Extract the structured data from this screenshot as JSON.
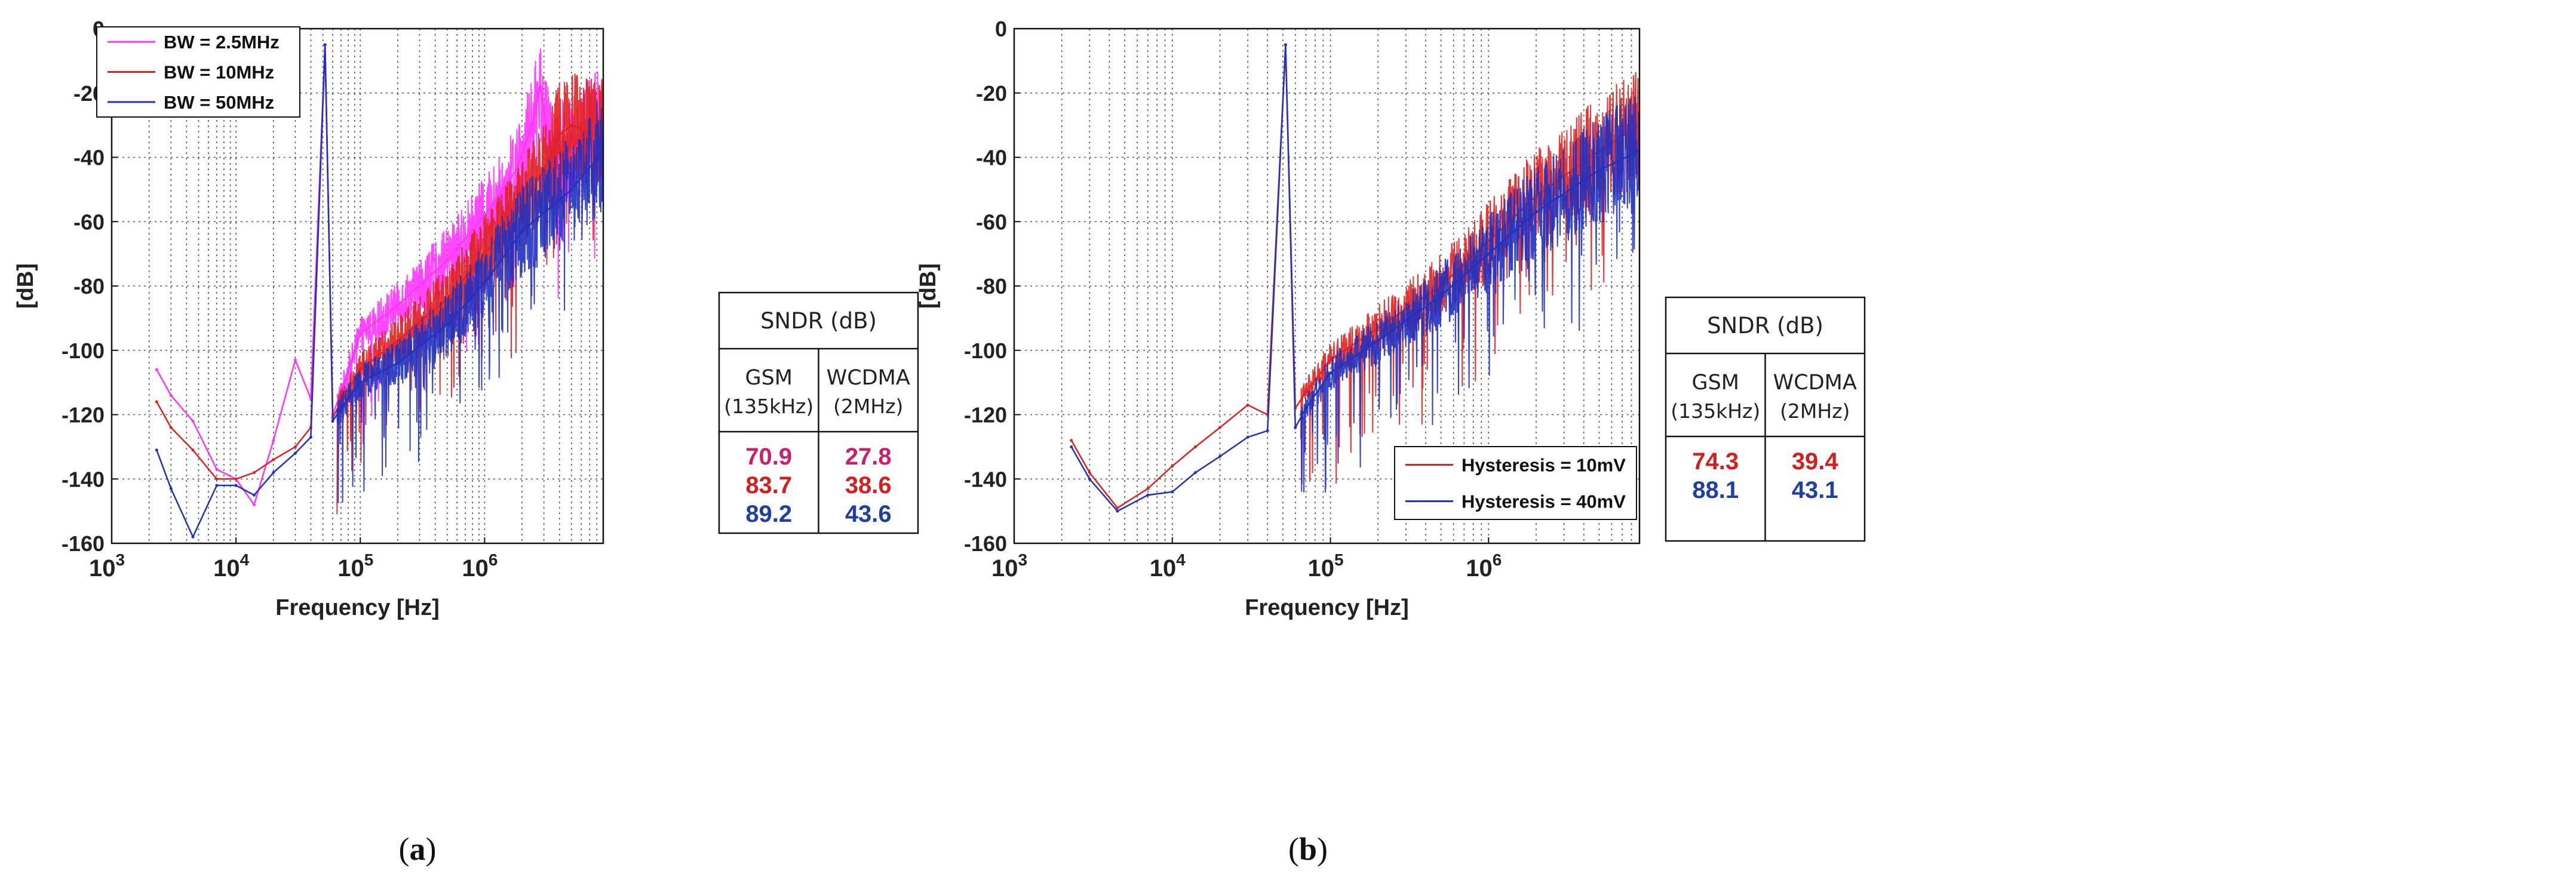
{
  "chart_data": [
    {
      "type": "line",
      "panel_label": "a",
      "xlabel": "Frequency [Hz]",
      "ylabel": "[dB]",
      "x_scale": "log",
      "xlim": [
        1000,
        9000000
      ],
      "ylim": [
        -160,
        0
      ],
      "x_ticks": [
        {
          "base": "10",
          "exp": "3"
        },
        {
          "base": "10",
          "exp": "4"
        },
        {
          "base": "10",
          "exp": "5"
        },
        {
          "base": "10",
          "exp": "6"
        }
      ],
      "y_ticks": [
        "0",
        "-20",
        "-40",
        "-60",
        "-80",
        "-100",
        "-120",
        "-140",
        "-160"
      ],
      "grid": true,
      "legend_position": "top-left",
      "series": [
        {
          "name": "BW = 2.5MHz",
          "color": "#ff33ff",
          "x": [
            2300,
            3000,
            4500,
            7000,
            10000,
            14000,
            20000,
            30000,
            40000,
            52000,
            60000,
            70000,
            100000,
            200000,
            500000,
            1000000,
            1800000,
            2400000,
            2800000,
            3500000,
            5000000,
            9000000
          ],
          "y": [
            -106,
            -114,
            -122,
            -137,
            -140,
            -148,
            -128,
            -103,
            -115,
            -5,
            -120,
            -113,
            -95,
            -86,
            -72,
            -58,
            -44,
            -30,
            -18,
            -42,
            -36,
            -30
          ]
        },
        {
          "name": "BW = 10MHz",
          "color": "#e02020",
          "x": [
            2300,
            3000,
            4500,
            7000,
            10000,
            14000,
            20000,
            30000,
            40000,
            52000,
            60000,
            70000,
            100000,
            200000,
            500000,
            1000000,
            2000000,
            3000000,
            4000000,
            5000000,
            9000000
          ],
          "y": [
            -116,
            -124,
            -131,
            -140,
            -140,
            -138,
            -134,
            -130,
            -124,
            -5,
            -121,
            -116,
            -106,
            -97,
            -84,
            -70,
            -55,
            -44,
            -33,
            -30,
            -34
          ]
        },
        {
          "name": "BW = 50MHz",
          "color": "#2030c0",
          "x": [
            2300,
            3000,
            4500,
            7000,
            10000,
            14000,
            20000,
            30000,
            40000,
            52000,
            60000,
            70000,
            100000,
            200000,
            500000,
            1000000,
            2000000,
            5000000,
            9000000
          ],
          "y": [
            -131,
            -143,
            -158,
            -142,
            -142,
            -145,
            -138,
            -132,
            -127,
            -5,
            -122,
            -118,
            -110,
            -104,
            -92,
            -79,
            -63,
            -50,
            -38
          ]
        }
      ],
      "sndr_table": {
        "title": "SNDR (dB)",
        "columns": [
          {
            "name": "GSM",
            "band": "(135kHz)"
          },
          {
            "name": "WCDMA",
            "band": "(2MHz)"
          }
        ],
        "rows": [
          {
            "values": [
              "70.9",
              "27.8"
            ],
            "color": "#c8206e"
          },
          {
            "values": [
              "83.7",
              "38.6"
            ],
            "color": "#d02020"
          },
          {
            "values": [
              "89.2",
              "43.6"
            ],
            "color": "#2040a0"
          }
        ]
      }
    },
    {
      "type": "line",
      "panel_label": "b",
      "xlabel": "Frequency [Hz]",
      "ylabel": "[dB]",
      "x_scale": "log",
      "xlim": [
        1000,
        9000000
      ],
      "ylim": [
        -160,
        0
      ],
      "x_ticks": [
        {
          "base": "10",
          "exp": "3"
        },
        {
          "base": "10",
          "exp": "4"
        },
        {
          "base": "10",
          "exp": "5"
        },
        {
          "base": "10",
          "exp": "6"
        }
      ],
      "y_ticks": [
        "0",
        "-20",
        "-40",
        "-60",
        "-80",
        "-100",
        "-120",
        "-140",
        "-160"
      ],
      "grid": true,
      "legend_position": "bottom-right",
      "series": [
        {
          "name": "Hysteresis = 10mV",
          "color": "#e02020",
          "x": [
            2300,
            3000,
            4500,
            7000,
            10000,
            14000,
            20000,
            30000,
            40000,
            52000,
            60000,
            70000,
            100000,
            200000,
            500000,
            1000000,
            2000000,
            5000000,
            9000000
          ],
          "y": [
            -128,
            -138,
            -149,
            -143,
            -136,
            -130,
            -124,
            -117,
            -120,
            -5,
            -118,
            -113,
            -103,
            -93,
            -80,
            -66,
            -52,
            -38,
            -30
          ]
        },
        {
          "name": "Hysteresis = 40mV",
          "color": "#2030c0",
          "x": [
            2300,
            3000,
            4500,
            7000,
            10000,
            14000,
            20000,
            30000,
            40000,
            52000,
            60000,
            70000,
            100000,
            200000,
            500000,
            1000000,
            2000000,
            5000000,
            9000000
          ],
          "y": [
            -130,
            -140,
            -150,
            -145,
            -144,
            -138,
            -133,
            -127,
            -125,
            -5,
            -124,
            -118,
            -107,
            -97,
            -83,
            -70,
            -57,
            -44,
            -38
          ]
        }
      ],
      "sndr_table": {
        "title": "SNDR (dB)",
        "columns": [
          {
            "name": "GSM",
            "band": "(135kHz)"
          },
          {
            "name": "WCDMA",
            "band": "(2MHz)"
          }
        ],
        "rows": [
          {
            "values": [
              "74.3",
              "39.4"
            ],
            "color": "#d02020"
          },
          {
            "values": [
              "88.1",
              "43.1"
            ],
            "color": "#2040a0"
          }
        ]
      }
    }
  ]
}
